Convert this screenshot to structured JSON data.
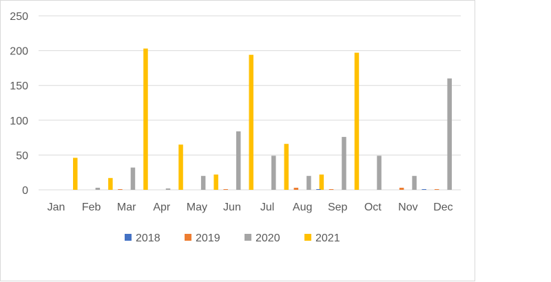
{
  "chart_data": {
    "type": "bar",
    "categories": [
      "Jan",
      "Feb",
      "Mar",
      "Apr",
      "May",
      "Jun",
      "Jul",
      "Aug",
      "Sep",
      "Oct",
      "Nov",
      "Dec"
    ],
    "series": [
      {
        "name": "2018",
        "color": "#4472C4",
        "values": [
          0,
          0,
          0,
          0,
          0,
          0,
          0,
          0,
          1,
          0,
          0,
          1
        ]
      },
      {
        "name": "2019",
        "color": "#ED7D31",
        "values": [
          0,
          0,
          1,
          0,
          0,
          1,
          0,
          3,
          1,
          0,
          3,
          1
        ]
      },
      {
        "name": "2020",
        "color": "#A5A5A5",
        "values": [
          0,
          3,
          32,
          2,
          20,
          84,
          49,
          20,
          76,
          49,
          20,
          160
        ]
      },
      {
        "name": "2021",
        "color": "#FFC000",
        "values": [
          46,
          17,
          203,
          65,
          22,
          194,
          66,
          22,
          197,
          0,
          0,
          0
        ]
      }
    ],
    "ylim": [
      0,
      250
    ],
    "yticks": [
      "0",
      "50",
      "100",
      "150",
      "200",
      "250"
    ],
    "grid": true,
    "legend": "bottom"
  }
}
